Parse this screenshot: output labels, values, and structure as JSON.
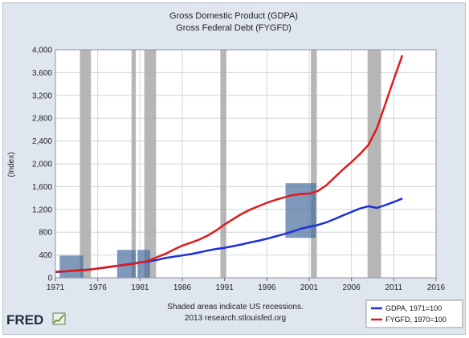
{
  "chart_data": {
    "type": "line",
    "title": "Gross Domestic Product (GDPA)",
    "subtitle": "Gross Federal Debt (FYGFD)",
    "ylabel": "(Index)",
    "xlabel": "",
    "xlim": [
      1971,
      2016
    ],
    "ylim": [
      0,
      4000
    ],
    "x_ticks": [
      1971,
      1976,
      1981,
      1986,
      1991,
      1996,
      2001,
      2006,
      2011,
      2016
    ],
    "y_ticks": [
      0,
      400,
      800,
      1200,
      1600,
      2000,
      2400,
      2800,
      3200,
      3600,
      4000
    ],
    "x_tick_labels": [
      "1971",
      "1976",
      "1981",
      "1986",
      "1991",
      "1996",
      "2001",
      "2006",
      "2011",
      "2016"
    ],
    "y_tick_labels": [
      "0",
      "400",
      "800",
      "1,200",
      "1,600",
      "2,000",
      "2,400",
      "2,800",
      "3,200",
      "3,600",
      "4,000"
    ],
    "grid": true,
    "legend_position": "bottom-right",
    "recessions": [
      [
        1973.9,
        1975.2
      ],
      [
        1980.0,
        1980.5
      ],
      [
        1981.5,
        1982.9
      ],
      [
        1990.5,
        1991.2
      ],
      [
        2001.2,
        2001.9
      ],
      [
        2007.9,
        2009.5
      ]
    ],
    "highlights": [
      {
        "x": [
          1971.5,
          1974.3
        ],
        "y": [
          0,
          390
        ]
      },
      {
        "x": [
          1978.3,
          1980.5
        ],
        "y": [
          0,
          490
        ]
      },
      {
        "x": [
          1980.7,
          1982.2
        ],
        "y": [
          0,
          490
        ]
      },
      {
        "x": [
          1998.2,
          2001.8
        ],
        "y": [
          700,
          1660
        ]
      }
    ],
    "series": [
      {
        "name": "GDPA, 1971=100",
        "color": "#1f2fd6",
        "x": [
          1971,
          1972,
          1973,
          1974,
          1975,
          1976,
          1977,
          1978,
          1979,
          1980,
          1981,
          1982,
          1983,
          1984,
          1985,
          1986,
          1987,
          1988,
          1989,
          1990,
          1991,
          1992,
          1993,
          1994,
          1995,
          1996,
          1997,
          1998,
          1999,
          2000,
          2001,
          2002,
          2003,
          2004,
          2005,
          2006,
          2007,
          2008,
          2009,
          2010,
          2011,
          2012
        ],
        "y": [
          100,
          110,
          123,
          134,
          145,
          162,
          180,
          202,
          225,
          245,
          272,
          286,
          312,
          346,
          370,
          392,
          415,
          445,
          478,
          505,
          525,
          555,
          585,
          620,
          650,
          685,
          725,
          765,
          810,
          860,
          895,
          925,
          970,
          1030,
          1095,
          1155,
          1215,
          1255,
          1225,
          1275,
          1330,
          1390
        ]
      },
      {
        "name": "FYGFD, 1970=100",
        "color": "#e01b1b",
        "x": [
          1971,
          1972,
          1973,
          1974,
          1975,
          1976,
          1977,
          1978,
          1979,
          1980,
          1981,
          1982,
          1983,
          1984,
          1985,
          1986,
          1987,
          1988,
          1989,
          1990,
          1991,
          1992,
          1993,
          1994,
          1995,
          1996,
          1997,
          1998,
          1999,
          2000,
          2001,
          2002,
          2003,
          2004,
          2005,
          2006,
          2007,
          2008,
          2009,
          2010,
          2011,
          2012
        ],
        "y": [
          105,
          113,
          122,
          127,
          140,
          165,
          185,
          205,
          220,
          240,
          265,
          300,
          360,
          420,
          495,
          565,
          615,
          670,
          740,
          830,
          935,
          1030,
          1120,
          1195,
          1255,
          1315,
          1365,
          1410,
          1450,
          1470,
          1475,
          1520,
          1620,
          1760,
          1900,
          2030,
          2170,
          2330,
          2620,
          3050,
          3480,
          3900
        ]
      }
    ],
    "footnote_line1": "Shaded areas indicate US recessions.",
    "footnote_line2": "2013 research.stlouisfed.org",
    "logo": "FRED",
    "colors": {
      "plot_bg": "#ffffff",
      "frame_bg": "#dfe6ef",
      "recession": "#a9a9a9",
      "highlight": "#4a6e9c"
    }
  }
}
